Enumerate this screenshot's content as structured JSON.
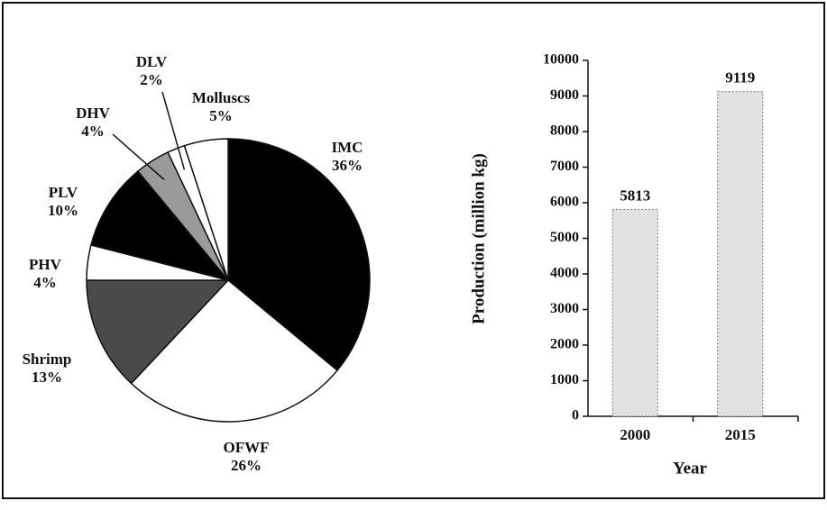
{
  "chart_data": [
    {
      "type": "pie",
      "categories": [
        "IMC",
        "OFWF",
        "Shrimp",
        "PHV",
        "PLV",
        "DHV",
        "DLV",
        "Molluscs"
      ],
      "values": [
        36,
        26,
        13,
        4,
        10,
        4,
        2,
        5
      ],
      "value_labels": [
        "36%",
        "26%",
        "13%",
        "4%",
        "10%",
        "4%",
        "2%",
        "5%"
      ],
      "colors": [
        "#000000",
        "#ffffff",
        "#4a4a4a",
        "#ffffff",
        "#000000",
        "#9a9a9a",
        "#ffffff",
        "#ffffff"
      ]
    },
    {
      "type": "bar",
      "categories": [
        "2000",
        "2015"
      ],
      "values": [
        5813,
        9119
      ],
      "color": "#e2e2e2",
      "ylim": [
        0,
        10000
      ],
      "yticks": [
        0,
        1000,
        2000,
        3000,
        4000,
        5000,
        6000,
        7000,
        8000,
        9000,
        10000
      ],
      "xlabel": "Year",
      "ylabel": "Production (million kg)"
    }
  ]
}
